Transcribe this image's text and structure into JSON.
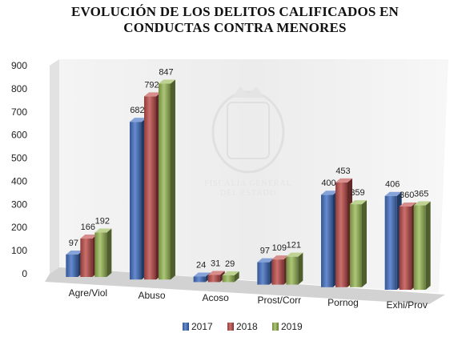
{
  "chart_data": {
    "type": "bar",
    "title_lines": [
      "EVOLUCIÓN DE LOS DELITOS CALIFICADOS EN",
      "CONDUCTAS CONTRA MENORES"
    ],
    "categories": [
      "Agre/Viol",
      "Abuso",
      "Acoso",
      "Prost/Corr",
      "Pornog",
      "Exhi/Prov"
    ],
    "series": [
      {
        "name": "2017",
        "color": "#4472C4",
        "values": [
          97,
          682,
          24,
          97,
          400,
          406
        ]
      },
      {
        "name": "2018",
        "color": "#C0504D",
        "values": [
          166,
          792,
          31,
          109,
          453,
          360
        ]
      },
      {
        "name": "2019",
        "color": "#9BBB59",
        "values": [
          192,
          847,
          29,
          121,
          359,
          365
        ]
      }
    ],
    "ylim": [
      0,
      900
    ],
    "yticks": [
      0,
      100,
      200,
      300,
      400,
      500,
      600,
      700,
      800,
      900
    ],
    "grid": false,
    "style": "3d-columns",
    "legend_position": "bottom",
    "watermark": {
      "lines": [
        "FISCALÍA GENERAL",
        "DEL ESTADO"
      ],
      "emblem": "coat-of-arms"
    }
  }
}
